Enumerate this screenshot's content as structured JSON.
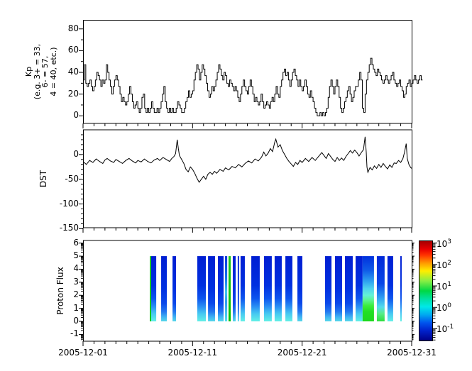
{
  "figure": {
    "background": "#ffffff",
    "line_color": "#000000"
  },
  "x_axis": {
    "tick_labels": [
      "2005-12-01",
      "2005-12-11",
      "2005-12-21",
      "2005-12-31"
    ],
    "tick_days": [
      1,
      11,
      21,
      31
    ],
    "minor_step_days": 1,
    "range_days": [
      1,
      31
    ]
  },
  "chart_data": [
    {
      "type": "line",
      "subtype": "step",
      "ylabel_lines": [
        "Kp",
        "(e.g. 3+ = 33,",
        "6- = 57,",
        "4 = 40, etc.)"
      ],
      "ylim": [
        -7,
        88
      ],
      "yticks": [
        0,
        20,
        40,
        60,
        80
      ],
      "yminor": [
        10,
        30,
        50,
        70
      ],
      "points_per_day": 8,
      "start_day": 1,
      "values": [
        33,
        47,
        30,
        27,
        30,
        33,
        27,
        23,
        27,
        33,
        40,
        37,
        33,
        27,
        33,
        30,
        33,
        47,
        40,
        33,
        27,
        20,
        27,
        33,
        37,
        33,
        27,
        20,
        13,
        17,
        13,
        10,
        13,
        20,
        27,
        20,
        13,
        7,
        10,
        13,
        7,
        3,
        7,
        17,
        20,
        7,
        3,
        7,
        3,
        7,
        13,
        7,
        3,
        3,
        7,
        3,
        7,
        13,
        20,
        27,
        13,
        7,
        3,
        7,
        3,
        7,
        3,
        3,
        7,
        13,
        10,
        7,
        3,
        3,
        7,
        13,
        17,
        23,
        17,
        20,
        23,
        33,
        40,
        47,
        43,
        33,
        40,
        47,
        43,
        37,
        30,
        23,
        17,
        20,
        27,
        23,
        27,
        33,
        40,
        47,
        43,
        37,
        33,
        40,
        37,
        30,
        27,
        33,
        30,
        27,
        23,
        27,
        23,
        17,
        13,
        20,
        27,
        33,
        27,
        23,
        20,
        27,
        33,
        27,
        20,
        13,
        17,
        13,
        10,
        13,
        20,
        13,
        7,
        10,
        13,
        10,
        7,
        13,
        17,
        13,
        20,
        27,
        20,
        17,
        27,
        33,
        40,
        43,
        37,
        40,
        33,
        27,
        33,
        40,
        43,
        37,
        33,
        27,
        33,
        27,
        23,
        27,
        33,
        27,
        20,
        17,
        23,
        17,
        13,
        7,
        3,
        0,
        0,
        3,
        0,
        3,
        0,
        3,
        7,
        17,
        27,
        33,
        27,
        20,
        27,
        33,
        27,
        17,
        7,
        3,
        7,
        13,
        17,
        23,
        27,
        20,
        13,
        17,
        23,
        27,
        27,
        33,
        40,
        33,
        7,
        3,
        20,
        33,
        40,
        47,
        53,
        47,
        43,
        40,
        37,
        43,
        40,
        37,
        33,
        30,
        33,
        37,
        33,
        30,
        33,
        37,
        40,
        33,
        30,
        27,
        30,
        33,
        27,
        23,
        17,
        20,
        27,
        30,
        33,
        27,
        30,
        33,
        37,
        33,
        30,
        33,
        37,
        33
      ]
    },
    {
      "type": "line",
      "ylabel": "DST",
      "ylim": [
        -148,
        50
      ],
      "yticks": [
        0,
        -50,
        -100,
        -150
      ],
      "yminor_step": 10,
      "series_day_value": [
        [
          1.0,
          -14
        ],
        [
          1.3,
          -20
        ],
        [
          1.6,
          -12
        ],
        [
          1.9,
          -16
        ],
        [
          2.2,
          -9
        ],
        [
          2.5,
          -14
        ],
        [
          2.8,
          -18
        ],
        [
          3.0,
          -11
        ],
        [
          3.2,
          -8
        ],
        [
          3.5,
          -13
        ],
        [
          3.8,
          -16
        ],
        [
          4.0,
          -10
        ],
        [
          4.3,
          -14
        ],
        [
          4.6,
          -18
        ],
        [
          4.9,
          -12
        ],
        [
          5.2,
          -8
        ],
        [
          5.5,
          -13
        ],
        [
          5.8,
          -17
        ],
        [
          6.0,
          -12
        ],
        [
          6.3,
          -15
        ],
        [
          6.6,
          -9
        ],
        [
          6.9,
          -14
        ],
        [
          7.2,
          -17
        ],
        [
          7.5,
          -11
        ],
        [
          7.8,
          -8
        ],
        [
          8.0,
          -12
        ],
        [
          8.3,
          -6
        ],
        [
          8.6,
          -10
        ],
        [
          8.9,
          -14
        ],
        [
          9.1,
          -8
        ],
        [
          9.3,
          -4
        ],
        [
          9.45,
          2
        ],
        [
          9.6,
          30
        ],
        [
          9.7,
          12
        ],
        [
          9.8,
          -2
        ],
        [
          10.0,
          -10
        ],
        [
          10.2,
          -18
        ],
        [
          10.4,
          -30
        ],
        [
          10.6,
          -35
        ],
        [
          10.8,
          -25
        ],
        [
          11.0,
          -30
        ],
        [
          11.2,
          -38
        ],
        [
          11.4,
          -48
        ],
        [
          11.6,
          -56
        ],
        [
          11.8,
          -50
        ],
        [
          12.0,
          -44
        ],
        [
          12.2,
          -50
        ],
        [
          12.4,
          -40
        ],
        [
          12.6,
          -36
        ],
        [
          12.8,
          -40
        ],
        [
          13.0,
          -34
        ],
        [
          13.2,
          -38
        ],
        [
          13.5,
          -30
        ],
        [
          13.8,
          -34
        ],
        [
          14.0,
          -27
        ],
        [
          14.3,
          -31
        ],
        [
          14.6,
          -24
        ],
        [
          14.9,
          -27
        ],
        [
          15.2,
          -20
        ],
        [
          15.5,
          -25
        ],
        [
          15.8,
          -18
        ],
        [
          16.1,
          -13
        ],
        [
          16.4,
          -17
        ],
        [
          16.7,
          -9
        ],
        [
          17.0,
          -13
        ],
        [
          17.3,
          -5
        ],
        [
          17.5,
          5
        ],
        [
          17.7,
          -3
        ],
        [
          17.9,
          3
        ],
        [
          18.1,
          12
        ],
        [
          18.3,
          6
        ],
        [
          18.5,
          25
        ],
        [
          18.6,
          31
        ],
        [
          18.8,
          15
        ],
        [
          19.0,
          20
        ],
        [
          19.2,
          8
        ],
        [
          19.4,
          0
        ],
        [
          19.6,
          -8
        ],
        [
          19.8,
          -14
        ],
        [
          20.0,
          -19
        ],
        [
          20.2,
          -24
        ],
        [
          20.4,
          -16
        ],
        [
          20.6,
          -20
        ],
        [
          20.8,
          -12
        ],
        [
          21.0,
          -16
        ],
        [
          21.3,
          -8
        ],
        [
          21.6,
          -14
        ],
        [
          21.9,
          -6
        ],
        [
          22.2,
          -12
        ],
        [
          22.5,
          -4
        ],
        [
          22.8,
          4
        ],
        [
          23.0,
          -2
        ],
        [
          23.2,
          -8
        ],
        [
          23.4,
          2
        ],
        [
          23.6,
          -4
        ],
        [
          23.8,
          -10
        ],
        [
          24.0,
          -14
        ],
        [
          24.2,
          -6
        ],
        [
          24.4,
          -12
        ],
        [
          24.6,
          -7
        ],
        [
          24.8,
          -12
        ],
        [
          25.0,
          -4
        ],
        [
          25.2,
          2
        ],
        [
          25.4,
          8
        ],
        [
          25.6,
          3
        ],
        [
          25.8,
          9
        ],
        [
          26.0,
          4
        ],
        [
          26.2,
          -3
        ],
        [
          26.4,
          4
        ],
        [
          26.6,
          10
        ],
        [
          26.75,
          36
        ],
        [
          26.85,
          5
        ],
        [
          26.92,
          -25
        ],
        [
          27.0,
          -36
        ],
        [
          27.2,
          -26
        ],
        [
          27.4,
          -31
        ],
        [
          27.6,
          -23
        ],
        [
          27.8,
          -28
        ],
        [
          28.0,
          -20
        ],
        [
          28.2,
          -26
        ],
        [
          28.4,
          -18
        ],
        [
          28.6,
          -24
        ],
        [
          28.8,
          -29
        ],
        [
          29.0,
          -21
        ],
        [
          29.2,
          -26
        ],
        [
          29.4,
          -17
        ],
        [
          29.6,
          -18
        ],
        [
          29.8,
          -12
        ],
        [
          30.0,
          -16
        ],
        [
          30.2,
          -8
        ],
        [
          30.35,
          5
        ],
        [
          30.5,
          22
        ],
        [
          30.6,
          -8
        ],
        [
          30.75,
          -20
        ],
        [
          30.9,
          -26
        ],
        [
          31.0,
          -28
        ]
      ]
    },
    {
      "type": "heatmap",
      "ylabel": "Proton Flux",
      "ylim": [
        -1.52,
        6.2
      ],
      "yticks": [
        -1,
        0,
        1,
        2,
        3,
        4,
        5,
        6
      ],
      "log_minor_ticks": true,
      "bar_value_range": [
        0,
        5
      ],
      "bars": [
        {
          "d0": 7.1,
          "d1": 7.22,
          "style": "g"
        },
        {
          "d0": 7.22,
          "d1": 7.68,
          "style": "bc"
        },
        {
          "d0": 8.13,
          "d1": 8.65,
          "style": "b"
        },
        {
          "d0": 9.17,
          "d1": 9.49,
          "style": "b"
        },
        {
          "d0": 11.43,
          "d1": 12.21,
          "style": "bc"
        },
        {
          "d0": 12.41,
          "d1": 13.05,
          "style": "b"
        },
        {
          "d0": 13.31,
          "d1": 13.83,
          "style": "b"
        },
        {
          "d0": 13.96,
          "d1": 14.16,
          "style": "bc2"
        },
        {
          "d0": 14.28,
          "d1": 14.48,
          "style": "g"
        },
        {
          "d0": 14.67,
          "d1": 14.93,
          "style": "b"
        },
        {
          "d0": 15.12,
          "d1": 15.24,
          "style": "b"
        },
        {
          "d0": 15.38,
          "d1": 15.77,
          "style": "bc"
        },
        {
          "d0": 16.36,
          "d1": 17.13,
          "style": "bc"
        },
        {
          "d0": 17.52,
          "d1": 18.23,
          "style": "bc"
        },
        {
          "d0": 18.49,
          "d1": 19.14,
          "style": "bc"
        },
        {
          "d0": 19.47,
          "d1": 20.11,
          "style": "bc"
        },
        {
          "d0": 20.57,
          "d1": 21.02,
          "style": "b"
        },
        {
          "d0": 23.09,
          "d1": 23.68,
          "style": "b"
        },
        {
          "d0": 24.0,
          "d1": 24.65,
          "style": "b"
        },
        {
          "d0": 24.91,
          "d1": 25.62,
          "style": "b"
        },
        {
          "d0": 25.88,
          "d1": 26.52,
          "style": "bc"
        },
        {
          "d0": 26.52,
          "d1": 27.56,
          "style": "storm"
        },
        {
          "d0": 27.82,
          "d1": 28.53,
          "style": "bg"
        },
        {
          "d0": 28.79,
          "d1": 29.31,
          "style": "bc"
        },
        {
          "d0": 29.96,
          "d1": 30.09,
          "style": "bc"
        }
      ],
      "bar_styles": {
        "b": [
          [
            0,
            "#001ed2"
          ],
          [
            0.5,
            "#0030e0"
          ],
          [
            0.72,
            "#0a47ea"
          ],
          [
            0.85,
            "#2377f0"
          ],
          [
            0.93,
            "#3fb0f2"
          ],
          [
            1,
            "#55d8ea"
          ]
        ],
        "bc": [
          [
            0,
            "#001ed2"
          ],
          [
            0.45,
            "#0030e0"
          ],
          [
            0.65,
            "#0d55ee"
          ],
          [
            0.78,
            "#2b92f4"
          ],
          [
            0.88,
            "#46c8f2"
          ],
          [
            1,
            "#63f0e6"
          ]
        ],
        "bc2": [
          [
            0,
            "#0033dd"
          ],
          [
            0.35,
            "#1576ee"
          ],
          [
            0.55,
            "#3cc3ee"
          ],
          [
            0.7,
            "#2d9bf0"
          ],
          [
            1,
            "#55ddee"
          ]
        ],
        "g": [
          [
            0,
            "#17c817"
          ],
          [
            1,
            "#00c400"
          ]
        ],
        "storm": [
          [
            0,
            "#0030dd"
          ],
          [
            0.22,
            "#0f5ce8"
          ],
          [
            0.38,
            "#2d9ff0"
          ],
          [
            0.5,
            "#4fd4ee"
          ],
          [
            0.6,
            "#63f2d6"
          ],
          [
            0.68,
            "#5af58c"
          ],
          [
            0.76,
            "#3cee3c"
          ],
          [
            0.85,
            "#22e022"
          ],
          [
            1,
            "#1ed81e"
          ]
        ],
        "bg": [
          [
            0,
            "#0028d8"
          ],
          [
            0.42,
            "#0846e8"
          ],
          [
            0.64,
            "#2e9ef2"
          ],
          [
            0.78,
            "#52dcec"
          ],
          [
            0.88,
            "#55ee88"
          ],
          [
            1,
            "#2edd3c"
          ]
        ]
      },
      "colorbar": {
        "scale": "log",
        "ticks": [
          {
            "base": "10",
            "exp": "3"
          },
          {
            "base": "10",
            "exp": "2"
          },
          {
            "base": "10",
            "exp": "1"
          },
          {
            "base": "10",
            "exp": "0"
          },
          {
            "base": "10",
            "exp": "-1"
          }
        ],
        "tick_exponents": [
          3,
          2,
          1,
          0,
          -1
        ],
        "log_range": [
          -1.58,
          3.12
        ],
        "gradient_top_to_bottom": [
          [
            0,
            "#a50000"
          ],
          [
            0.08,
            "#e80000"
          ],
          [
            0.14,
            "#ff3300"
          ],
          [
            0.22,
            "#ff9900"
          ],
          [
            0.3,
            "#ffee00"
          ],
          [
            0.4,
            "#88ee44"
          ],
          [
            0.5,
            "#00d844"
          ],
          [
            0.58,
            "#00e0a0"
          ],
          [
            0.66,
            "#00e8e8"
          ],
          [
            0.74,
            "#00aaf0"
          ],
          [
            0.82,
            "#0055ee"
          ],
          [
            0.9,
            "#0022cc"
          ],
          [
            1,
            "#000088"
          ]
        ]
      }
    }
  ]
}
